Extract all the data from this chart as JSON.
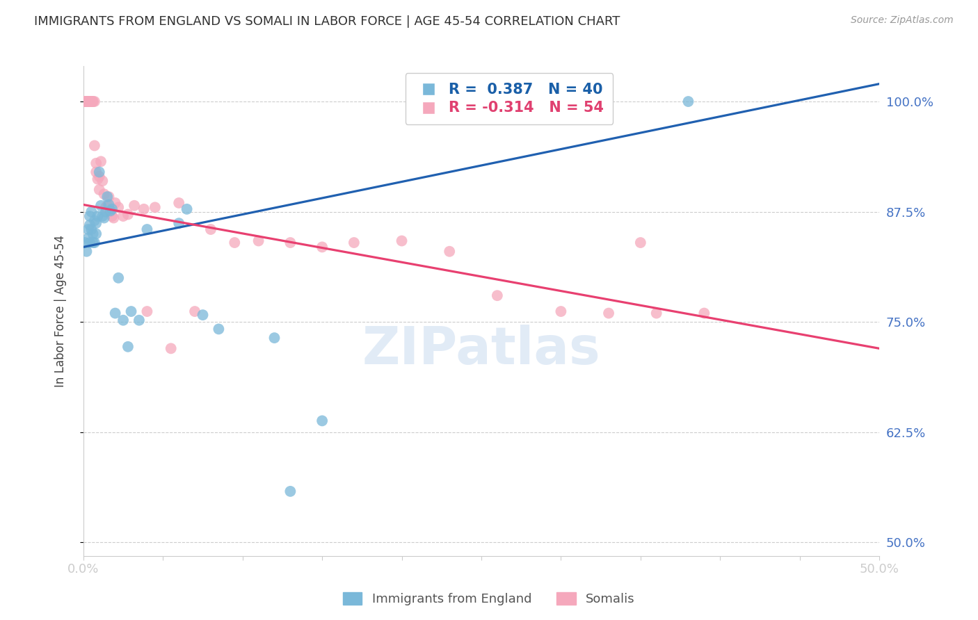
{
  "title": "IMMIGRANTS FROM ENGLAND VS SOMALI IN LABOR FORCE | AGE 45-54 CORRELATION CHART",
  "source": "Source: ZipAtlas.com",
  "ylabel": "In Labor Force | Age 45-54",
  "watermark": "ZIPatlas",
  "england_R": 0.387,
  "england_N": 40,
  "somali_R": -0.314,
  "somali_N": 54,
  "ytick_labels": [
    "100.0%",
    "87.5%",
    "75.0%",
    "62.5%",
    "50.0%"
  ],
  "ytick_values": [
    1.0,
    0.875,
    0.75,
    0.625,
    0.5
  ],
  "xmin": 0.0,
  "xmax": 0.5,
  "ymin": 0.485,
  "ymax": 1.04,
  "england_color": "#7ab8d9",
  "somali_color": "#f5a8bc",
  "england_line_color": "#2060b0",
  "somali_line_color": "#e84070",
  "england_line_x0": 0.0,
  "england_line_y0": 0.835,
  "england_line_x1": 0.5,
  "england_line_y1": 1.02,
  "somali_line_x0": 0.0,
  "somali_line_y0": 0.883,
  "somali_line_x1": 0.5,
  "somali_line_y1": 0.72,
  "england_x": [
    0.001,
    0.002,
    0.003,
    0.003,
    0.004,
    0.004,
    0.004,
    0.005,
    0.005,
    0.006,
    0.006,
    0.007,
    0.007,
    0.008,
    0.008,
    0.009,
    0.01,
    0.011,
    0.012,
    0.013,
    0.014,
    0.015,
    0.016,
    0.017,
    0.018,
    0.02,
    0.022,
    0.025,
    0.028,
    0.03,
    0.035,
    0.04,
    0.06,
    0.065,
    0.075,
    0.085,
    0.12,
    0.13,
    0.15,
    0.38
  ],
  "england_y": [
    0.84,
    0.83,
    0.855,
    0.845,
    0.87,
    0.86,
    0.84,
    0.875,
    0.855,
    0.85,
    0.84,
    0.865,
    0.84,
    0.862,
    0.85,
    0.87,
    0.92,
    0.882,
    0.87,
    0.868,
    0.875,
    0.892,
    0.883,
    0.876,
    0.878,
    0.76,
    0.8,
    0.752,
    0.722,
    0.762,
    0.752,
    0.855,
    0.862,
    0.878,
    0.758,
    0.742,
    0.732,
    0.558,
    0.638,
    1.0
  ],
  "somali_x": [
    0.001,
    0.001,
    0.002,
    0.002,
    0.003,
    0.003,
    0.003,
    0.004,
    0.004,
    0.005,
    0.005,
    0.006,
    0.006,
    0.007,
    0.007,
    0.008,
    0.008,
    0.009,
    0.01,
    0.01,
    0.011,
    0.012,
    0.013,
    0.014,
    0.015,
    0.016,
    0.017,
    0.018,
    0.019,
    0.02,
    0.022,
    0.025,
    0.028,
    0.032,
    0.038,
    0.045,
    0.06,
    0.08,
    0.095,
    0.11,
    0.13,
    0.15,
    0.17,
    0.2,
    0.23,
    0.26,
    0.3,
    0.33,
    0.36,
    0.39,
    0.04,
    0.055,
    0.07,
    0.35
  ],
  "somali_y": [
    1.0,
    1.0,
    1.0,
    1.0,
    1.0,
    1.0,
    1.0,
    1.0,
    1.0,
    1.0,
    1.0,
    1.0,
    1.0,
    1.0,
    0.95,
    0.92,
    0.93,
    0.912,
    0.915,
    0.9,
    0.932,
    0.91,
    0.895,
    0.88,
    0.882,
    0.892,
    0.875,
    0.87,
    0.868,
    0.885,
    0.88,
    0.87,
    0.872,
    0.882,
    0.878,
    0.88,
    0.885,
    0.855,
    0.84,
    0.842,
    0.84,
    0.835,
    0.84,
    0.842,
    0.83,
    0.78,
    0.762,
    0.76,
    0.76,
    0.76,
    0.762,
    0.72,
    0.762,
    0.84
  ],
  "background_color": "#ffffff",
  "grid_color": "#cccccc",
  "axis_color": "#cccccc",
  "title_color": "#333333",
  "tick_label_color": "#4472c4",
  "legend_text_england_color": "#1a5fa8",
  "legend_text_somali_color": "#e04070"
}
